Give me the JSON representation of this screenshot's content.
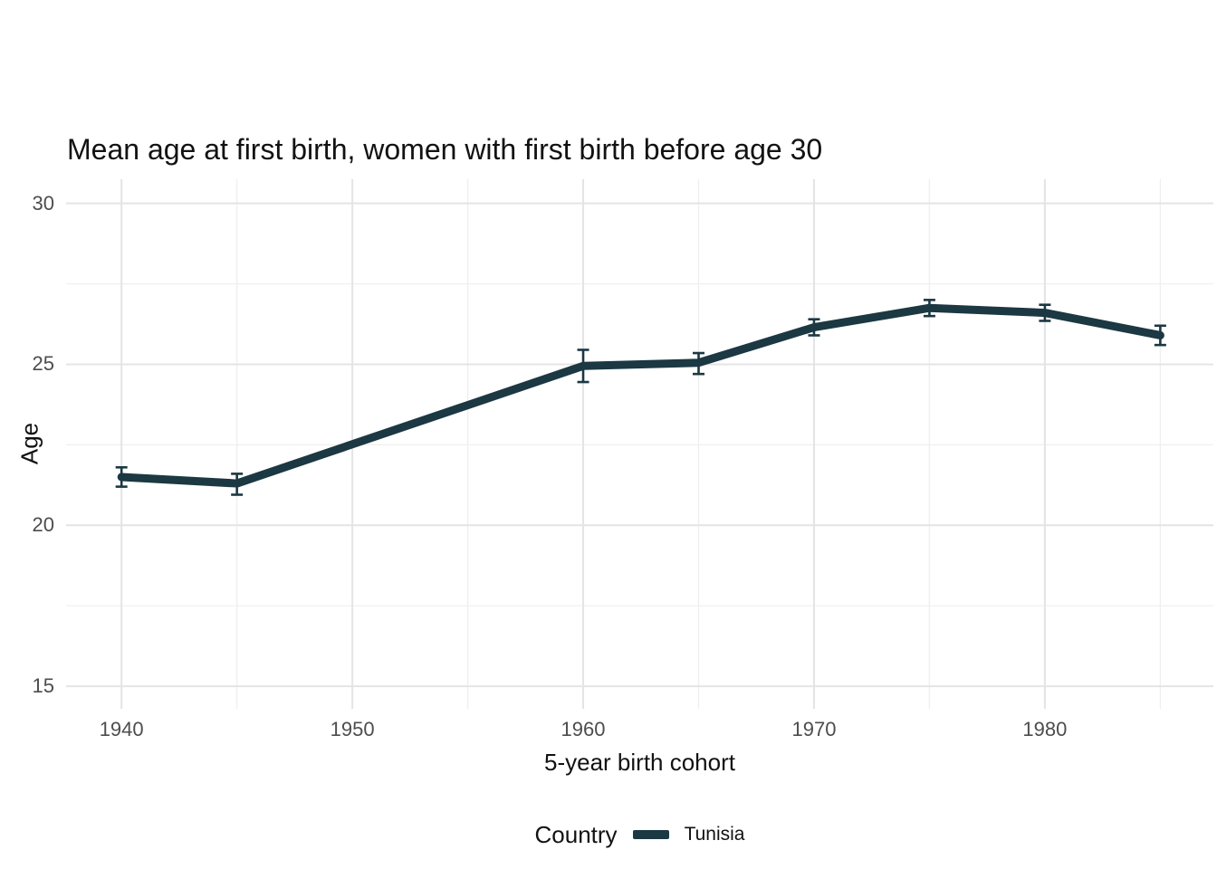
{
  "chart_data": {
    "type": "line",
    "title": "Mean age at first birth, women with first birth before age 30",
    "xlabel": "5-year birth cohort",
    "ylabel": "Age",
    "xlim": [
      1937.6,
      1987.3
    ],
    "ylim": [
      14.3,
      30.75
    ],
    "x_ticks": [
      1940,
      1950,
      1960,
      1970,
      1980
    ],
    "x_tick_labels": [
      "1940",
      "1950",
      "1960",
      "1970",
      "1980"
    ],
    "x_minor_gridlines": [
      1945,
      1955,
      1965,
      1975,
      1985
    ],
    "y_ticks": [
      15,
      20,
      25,
      30
    ],
    "y_tick_labels": [
      "15",
      "20",
      "25",
      "30"
    ],
    "y_minor_gridlines": [
      17.5,
      22.5,
      27.5
    ],
    "grid": true,
    "legend_position": "bottom",
    "series": [
      {
        "name": "Tunisia",
        "color": "#1b3843",
        "points": [
          {
            "x": 1940,
            "y": 21.5,
            "ylo": 21.2,
            "yhi": 21.8
          },
          {
            "x": 1945,
            "y": 21.3,
            "ylo": 20.95,
            "yhi": 21.6
          },
          {
            "x": 1960,
            "y": 24.95,
            "ylo": 24.45,
            "yhi": 25.45
          },
          {
            "x": 1965,
            "y": 25.05,
            "ylo": 24.7,
            "yhi": 25.35
          },
          {
            "x": 1970,
            "y": 26.15,
            "ylo": 25.9,
            "yhi": 26.4
          },
          {
            "x": 1975,
            "y": 26.75,
            "ylo": 26.5,
            "yhi": 27.0
          },
          {
            "x": 1980,
            "y": 26.6,
            "ylo": 26.35,
            "yhi": 26.85
          },
          {
            "x": 1985,
            "y": 25.9,
            "ylo": 25.6,
            "yhi": 26.2
          }
        ]
      }
    ]
  },
  "legend": {
    "title": "Country",
    "items": [
      {
        "label": "Tunisia",
        "color": "#1b3843"
      }
    ]
  },
  "colors": {
    "line": "#1b3843",
    "grid_major": "#e4e4e4",
    "grid_minor": "#efefef",
    "tick_text": "#4d4d4d",
    "title_text": "#121212",
    "background": "#ffffff"
  }
}
